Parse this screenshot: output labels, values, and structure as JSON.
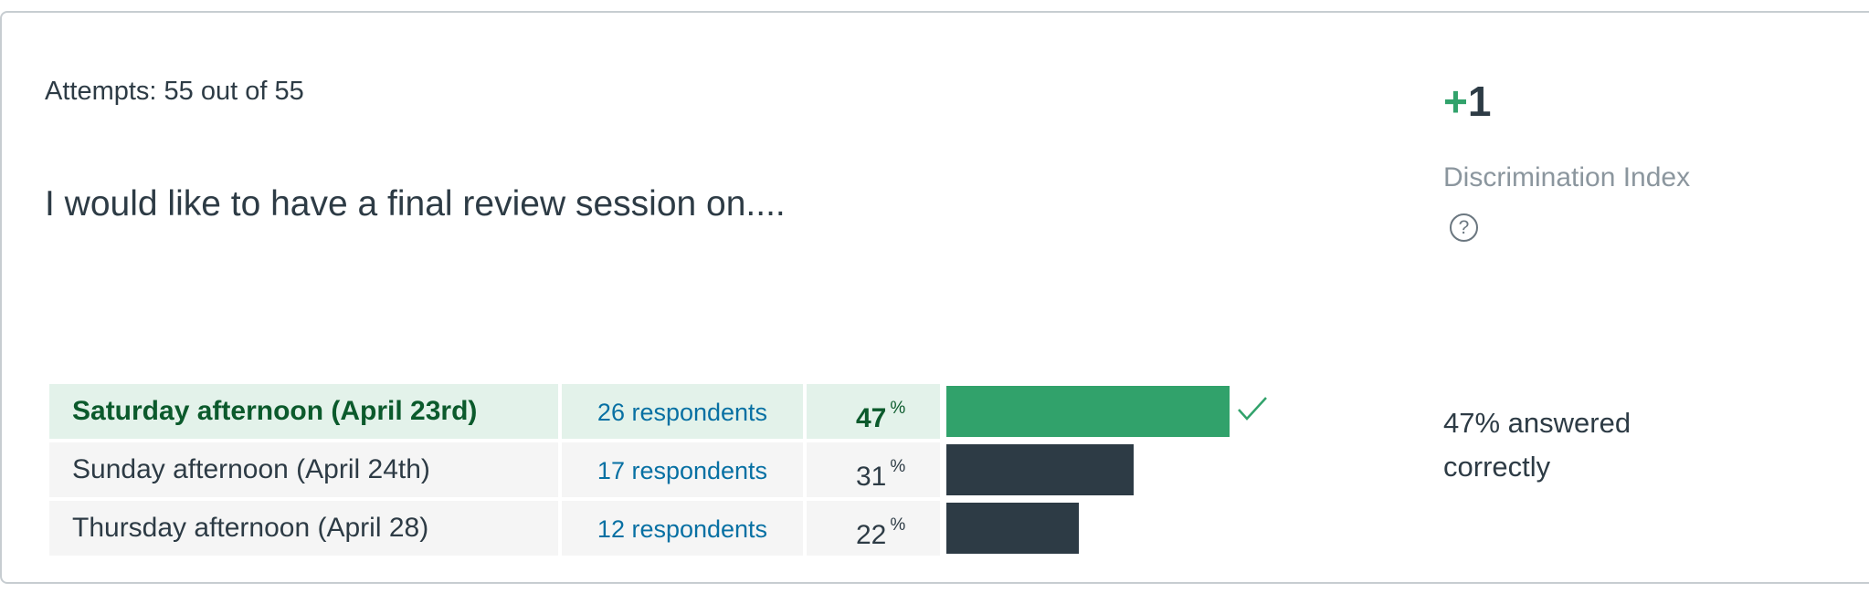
{
  "attempts": "Attempts: 55 out of 55",
  "question": "I would like to have a final review session on....",
  "answers": [
    {
      "text": "Saturday afternoon (April 23rd)",
      "respondents": "26 respondents",
      "percent": "47",
      "ratio": 0.47,
      "correct": true
    },
    {
      "text": "Sunday afternoon (April 24th)",
      "respondents": "17 respondents",
      "percent": "31",
      "ratio": 0.31,
      "correct": false
    },
    {
      "text": "Thursday afternoon (April 28)",
      "respondents": "12 respondents",
      "percent": "22",
      "ratio": 0.22,
      "correct": false
    }
  ],
  "percent_symbol": "%",
  "discrimination": {
    "sign": "+",
    "value": "1",
    "label": "Discrimination Index",
    "help_glyph": "?",
    "help_icon": "question-circle-icon"
  },
  "summary": "47% answered correctly",
  "icons": {
    "correct": "checkmark-icon"
  },
  "colors": {
    "correct_bar": "#31a26b",
    "bar": "#2d3b45",
    "correct_row": "#e3f2ea",
    "link": "#0770a3"
  }
}
